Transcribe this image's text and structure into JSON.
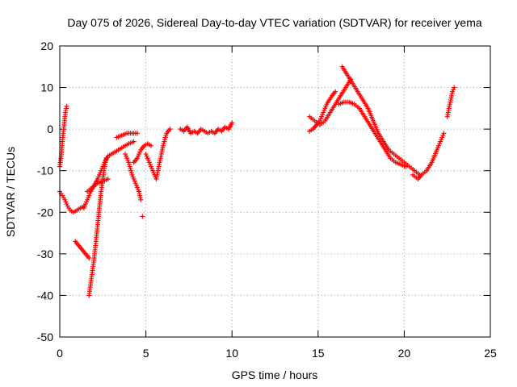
{
  "chart_data": {
    "type": "scatter",
    "title": "Day 075 of 2026, Sidereal Day-to-day VTEC variation (SDTVAR) for receiver yema",
    "xlabel": "GPS time / hours",
    "ylabel": "SDTVAR / TECUs",
    "xlim": [
      0,
      25
    ],
    "ylim": [
      -50,
      20
    ],
    "xticks": [
      0,
      5,
      10,
      15,
      20,
      25
    ],
    "yticks": [
      -50,
      -40,
      -30,
      -20,
      -10,
      0,
      10,
      20
    ],
    "grid": true,
    "marker": "+",
    "color": "#ff0000",
    "series": [
      {
        "name": "SDTVAR",
        "segments": [
          [
            [
              0.0,
              -9
            ],
            [
              0.1,
              -6
            ],
            [
              0.15,
              -3
            ],
            [
              0.2,
              -1
            ],
            [
              0.25,
              1
            ],
            [
              0.3,
              3
            ],
            [
              0.35,
              4.5
            ],
            [
              0.4,
              5.5
            ]
          ],
          [
            [
              0.0,
              -15
            ],
            [
              0.15,
              -16
            ],
            [
              0.3,
              -17
            ],
            [
              0.45,
              -18.5
            ],
            [
              0.6,
              -19.5
            ],
            [
              0.8,
              -20
            ],
            [
              1.0,
              -19.5
            ],
            [
              1.2,
              -19
            ],
            [
              1.4,
              -18.5
            ]
          ],
          [
            [
              0.9,
              -27
            ],
            [
              1.1,
              -28
            ],
            [
              1.3,
              -29
            ],
            [
              1.5,
              -30
            ],
            [
              1.7,
              -31
            ]
          ],
          [
            [
              1.4,
              -19
            ],
            [
              1.6,
              -17
            ],
            [
              1.8,
              -15
            ],
            [
              2.0,
              -13.5
            ],
            [
              2.2,
              -12
            ],
            [
              2.4,
              -10
            ],
            [
              2.6,
              -8
            ],
            [
              2.8,
              -6.5
            ],
            [
              3.0,
              -6
            ],
            [
              3.2,
              -5.5
            ],
            [
              3.4,
              -5
            ],
            [
              3.6,
              -4.5
            ],
            [
              3.8,
              -4
            ],
            [
              4.0,
              -3.5
            ],
            [
              4.3,
              -3
            ]
          ],
          [
            [
              1.7,
              -40
            ],
            [
              1.8,
              -37
            ],
            [
              1.9,
              -34
            ],
            [
              2.0,
              -31
            ],
            [
              2.1,
              -27
            ],
            [
              2.2,
              -23
            ],
            [
              2.3,
              -19
            ],
            [
              2.4,
              -15
            ],
            [
              2.5,
              -12
            ],
            [
              2.6,
              -9
            ],
            [
              2.7,
              -7
            ]
          ],
          [
            [
              1.6,
              -15
            ],
            [
              1.9,
              -14
            ],
            [
              2.2,
              -13
            ],
            [
              2.5,
              -12.5
            ],
            [
              2.8,
              -12
            ]
          ],
          [
            [
              3.3,
              -2
            ],
            [
              3.6,
              -1.5
            ],
            [
              3.9,
              -1
            ],
            [
              4.2,
              -1
            ],
            [
              4.5,
              -1
            ]
          ],
          [
            [
              3.8,
              -6
            ],
            [
              4.0,
              -8
            ],
            [
              4.2,
              -11
            ],
            [
              4.4,
              -13
            ],
            [
              4.6,
              -15
            ],
            [
              4.7,
              -17
            ]
          ],
          [
            [
              4.3,
              -8
            ],
            [
              4.5,
              -7
            ],
            [
              4.7,
              -5
            ],
            [
              4.9,
              -4
            ],
            [
              5.1,
              -3.5
            ],
            [
              5.3,
              -4
            ]
          ],
          [
            [
              4.8,
              -21
            ]
          ],
          [
            [
              5.0,
              -6
            ],
            [
              5.2,
              -8
            ],
            [
              5.4,
              -10
            ],
            [
              5.6,
              -12
            ],
            [
              5.8,
              -8
            ],
            [
              6.0,
              -4
            ],
            [
              6.2,
              -1
            ],
            [
              6.4,
              0
            ]
          ],
          [
            [
              7.0,
              0
            ],
            [
              7.2,
              -0.5
            ],
            [
              7.4,
              0.5
            ],
            [
              7.6,
              -1
            ],
            [
              7.8,
              -0.5
            ],
            [
              8.0,
              -1
            ],
            [
              8.2,
              0
            ],
            [
              8.4,
              -0.5
            ],
            [
              8.6,
              -1
            ],
            [
              8.8,
              -0.5
            ],
            [
              9.0,
              -1
            ],
            [
              9.2,
              0
            ],
            [
              9.4,
              -0.5
            ],
            [
              9.6,
              0.5
            ],
            [
              9.8,
              0
            ],
            [
              10.0,
              1.5
            ]
          ],
          [
            [
              14.5,
              -0.5
            ],
            [
              14.7,
              0
            ],
            [
              14.9,
              1
            ],
            [
              15.1,
              2
            ],
            [
              15.3,
              4
            ],
            [
              15.5,
              6
            ],
            [
              15.8,
              8
            ],
            [
              16.0,
              9
            ]
          ],
          [
            [
              14.5,
              3
            ],
            [
              14.8,
              2
            ],
            [
              15.1,
              1
            ],
            [
              15.4,
              2
            ],
            [
              15.7,
              4
            ],
            [
              16.0,
              6
            ],
            [
              16.3,
              8
            ],
            [
              16.6,
              10
            ],
            [
              16.9,
              12
            ]
          ],
          [
            [
              16.4,
              15
            ],
            [
              16.7,
              13
            ],
            [
              17.0,
              11
            ],
            [
              17.3,
              9
            ],
            [
              17.6,
              7
            ],
            [
              17.9,
              5
            ],
            [
              18.2,
              2
            ],
            [
              18.5,
              -1
            ],
            [
              18.8,
              -3
            ],
            [
              19.1,
              -5
            ],
            [
              19.4,
              -6
            ],
            [
              19.7,
              -7
            ],
            [
              20.0,
              -8
            ],
            [
              20.3,
              -9
            ],
            [
              20.6,
              -10
            ],
            [
              20.9,
              -11
            ]
          ],
          [
            [
              16.2,
              6
            ],
            [
              16.5,
              6.5
            ],
            [
              16.8,
              6.5
            ],
            [
              17.1,
              6
            ],
            [
              17.4,
              5
            ],
            [
              17.7,
              3
            ],
            [
              18.0,
              1
            ],
            [
              18.3,
              -1
            ],
            [
              18.6,
              -3
            ],
            [
              18.9,
              -5
            ],
            [
              19.2,
              -7
            ],
            [
              19.5,
              -8
            ],
            [
              19.8,
              -8.5
            ],
            [
              20.1,
              -9
            ]
          ],
          [
            [
              20.5,
              -11
            ],
            [
              20.8,
              -12
            ],
            [
              21.0,
              -11
            ],
            [
              21.3,
              -10
            ],
            [
              21.6,
              -8
            ],
            [
              21.9,
              -5
            ],
            [
              22.1,
              -3
            ],
            [
              22.3,
              -1
            ]
          ],
          [
            [
              22.5,
              3
            ],
            [
              22.6,
              5
            ],
            [
              22.7,
              7
            ],
            [
              22.8,
              9
            ],
            [
              22.9,
              10
            ]
          ]
        ]
      }
    ]
  }
}
